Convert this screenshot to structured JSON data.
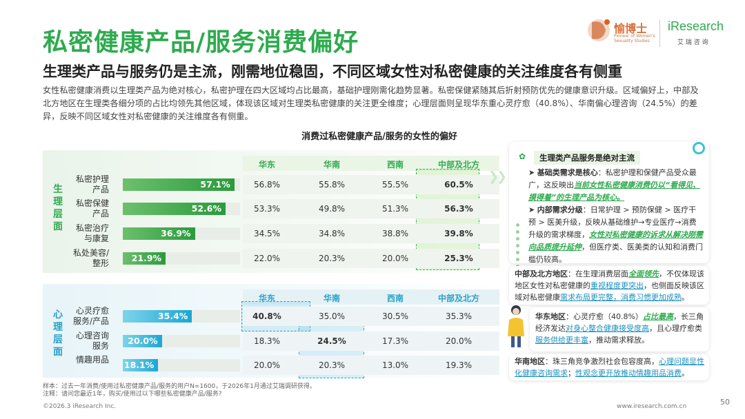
{
  "header": {
    "title": "私密健康产品/服务消费偏好",
    "subtitle": "生理类产品与服务仍是主流，刚需地位稳固，不同区域女性对私密健康的关注维度各有侧重",
    "description": "女性私密健康消费以生理类产品为绝对核心，私密护理在四大区域均占比最高，基础护理刚需化趋势显著。私密保健紧随其后折射预防优先的健康意识升级。区域偏好上，中部及北方地区在生理类各细分项的占比均领先其他区域，体现该区域对生理类私密健康的关注更全维度；心理层面则呈现华东重心灵疗愈（40.8%）、华南偏心理咨询（24.5%）的差异，反映不同区域女性对私密健康的关注维度各有侧重。"
  },
  "logos": {
    "yuboshi_name": "愉博士",
    "yuboshi_sub1": "Pioneer of Women's",
    "yuboshi_sub2": "Sexuality Studies",
    "iresearch_name": "iResearch",
    "iresearch_sub": "艾 瑞 咨 询"
  },
  "chart_data": {
    "type": "bar",
    "title": "消费过私密健康产品/服务的女性的偏好",
    "xlim": [
      0,
      100
    ],
    "sections": [
      {
        "name": "生理层面",
        "categories": [
          "私密护理产品",
          "私密保健产品",
          "私密治疗与康复",
          "私处美容/整形"
        ],
        "overall": [
          57.1,
          52.6,
          36.9,
          21.9
        ],
        "regions": [
          "华东",
          "华南",
          "西南",
          "中部及北方"
        ],
        "region_values": {
          "华东": [
            56.8,
            53.3,
            34.5,
            22.0
          ],
          "华南": [
            55.8,
            49.8,
            34.8,
            20.3
          ],
          "西南": [
            55.5,
            51.3,
            38.8,
            20.0
          ],
          "中部及北方": [
            60.5,
            56.3,
            39.8,
            25.3
          ]
        }
      },
      {
        "name": "心理层面",
        "categories": [
          "心灵疗愈服务/产品",
          "心理咨询服务",
          "情趣用品"
        ],
        "overall": [
          35.4,
          20.0,
          18.1
        ],
        "regions": [
          "华东",
          "华南",
          "西南",
          "中部及北方"
        ],
        "region_values": {
          "华东": [
            40.8,
            18.3,
            20.0
          ],
          "华南": [
            35.0,
            24.5,
            20.3
          ],
          "西南": [
            30.5,
            17.3,
            13.0
          ],
          "中部及北方": [
            35.3,
            20.0,
            19.3
          ]
        }
      }
    ]
  },
  "table": {
    "section1_label": "生理层面",
    "section2_label": "心理层面",
    "row_labels_1": [
      "私密护理\n产品",
      "私密保健\n产品",
      "私密治疗\n与康复",
      "私处美容/\n整形"
    ],
    "row_labels_2": [
      "心灵疗愈\n服务/产品",
      "心理咨询\n服务",
      "情趣用品"
    ],
    "bar_labels_1": [
      "57.1%",
      "52.6%",
      "36.9%",
      "21.9%"
    ],
    "bar_labels_2": [
      "35.4%",
      "20.0%",
      "18.1%"
    ],
    "regions": [
      "华东",
      "华南",
      "西南",
      "中部及北方"
    ],
    "cells_1": [
      [
        "56.8%",
        "55.8%",
        "55.5%",
        "60.5%"
      ],
      [
        "53.3%",
        "49.8%",
        "51.3%",
        "56.3%"
      ],
      [
        "34.5%",
        "34.8%",
        "38.8%",
        "39.8%"
      ],
      [
        "22.0%",
        "20.3%",
        "20.0%",
        "25.3%"
      ]
    ],
    "cells_2": [
      [
        "40.8%",
        "35.0%",
        "30.5%",
        "35.3%"
      ],
      [
        "18.3%",
        "24.5%",
        "17.3%",
        "20.0%"
      ],
      [
        "20.0%",
        "20.3%",
        "13.0%",
        "19.3%"
      ]
    ]
  },
  "insights": {
    "card1_head": "生理类产品服务是绝对主流",
    "card1_p1_lead": "基础类需求是核心",
    "card1_p1_a": "：私密护理和保健产品受众最广，这反映出",
    "card1_p1_hl": "当前女性私密健康消费仍以“看得见、摸得着”的生理产品为核心。",
    "card1_p2_lead": "内部需求分级",
    "card1_p2_a": "：日常护理 > 预防保健 > 医疗干预 > 医美升级，反映从基础维护→专业医疗→消费升级的需求梯度，",
    "card1_p2_hl": "女性对私密健康的诉求从解决刚需向品质提升延伸",
    "card1_p2_b": "，但医疗类、医美类的认知和消费门槛仍较高。",
    "card2_lead": "中部及北方地区",
    "card2_a": "：在生理消费层面",
    "card2_hl1": "全面领先",
    "card2_b": "，不仅体现该地区女性对私密健康的",
    "card2_hl2": "重视程度更突出",
    "card2_c": "，也侧面反映该区域对私密健康",
    "card2_hl3": "需求布局更完整，消费习惯更加成熟",
    "card2_d": "。",
    "card3_lead": "华东地区",
    "card3_a": "：心灵疗愈（40.8%）",
    "card3_hl1": "占比最高",
    "card3_b": "，长三角经济发达",
    "card3_hl2": "对身心整合健康接受度高",
    "card3_c": "，且心理疗愈类",
    "card3_hl3": "服务供给更丰富",
    "card3_d": "，推动需求释放。",
    "card4_lead": "华南地区",
    "card4_a": "：珠三角竞争激烈社会包容度高，",
    "card4_hl1": "心理问题显性化健康咨询需求",
    "card4_b": "；",
    "card4_hl2": "性观念更开放推动情趣用品消费",
    "card4_c": "。"
  },
  "footer": {
    "note1": "样本：过去一年消费/使用过私密健康产品/服务的用户N=1600，于2026年1月通过艾瑞调研获得。",
    "note2": "注释：请问您最近1年，购买/使用过以下哪些私密健康产品/服务?",
    "copyright": "©2026.3 iResearch Inc.",
    "website": "www.iresearch.com.cn",
    "page": "50"
  },
  "colors": {
    "green": "#2eab4e",
    "blue": "#29a0c8"
  }
}
